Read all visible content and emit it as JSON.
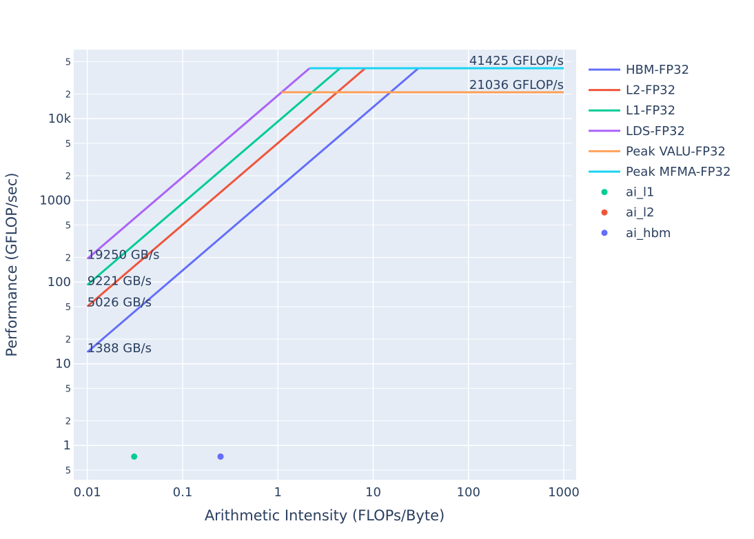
{
  "chart_data": {
    "type": "line",
    "xlabel": "Arithmetic Intensity (FLOPs/Byte)",
    "ylabel": "Performance (GFLOP/sec)",
    "x_scale": "log",
    "y_scale": "log",
    "xlim": [
      0.0072,
      1350
    ],
    "ylim": [
      0.38,
      70000
    ],
    "x_ticks": [
      {
        "value": 0.01,
        "label": "0.01"
      },
      {
        "value": 0.1,
        "label": "0.1"
      },
      {
        "value": 1,
        "label": "1"
      },
      {
        "value": 10,
        "label": "10"
      },
      {
        "value": 100,
        "label": "100"
      },
      {
        "value": 1000,
        "label": "1000"
      }
    ],
    "y_major_ticks": [
      {
        "value": 1,
        "label": "1"
      },
      {
        "value": 10,
        "label": "10"
      },
      {
        "value": 100,
        "label": "100"
      },
      {
        "value": 1000,
        "label": "1000"
      },
      {
        "value": 10000,
        "label": "10k"
      }
    ],
    "y_minor_ticks": [
      {
        "value": 0.5,
        "label": "5"
      },
      {
        "value": 2,
        "label": "2"
      },
      {
        "value": 5,
        "label": "5"
      },
      {
        "value": 20,
        "label": "2"
      },
      {
        "value": 50,
        "label": "5"
      },
      {
        "value": 200,
        "label": "2"
      },
      {
        "value": 500,
        "label": "5"
      },
      {
        "value": 2000,
        "label": "2"
      },
      {
        "value": 5000,
        "label": "5"
      },
      {
        "value": 20000,
        "label": "2"
      },
      {
        "value": 50000,
        "label": "5"
      }
    ],
    "grid": true,
    "legend_position": "right",
    "series": [
      {
        "name": "HBM-FP32",
        "kind": "line",
        "color": "#636efa",
        "x": [
          0.01,
          29.85,
          1000
        ],
        "y": [
          13.88,
          41425,
          41425
        ]
      },
      {
        "name": "L2-FP32",
        "kind": "line",
        "color": "#ef553b",
        "x": [
          0.01,
          8.24,
          1000
        ],
        "y": [
          50.26,
          41425,
          41425
        ]
      },
      {
        "name": "L1-FP32",
        "kind": "line",
        "color": "#00cc96",
        "x": [
          0.01,
          4.49,
          1000
        ],
        "y": [
          92.21,
          41425,
          41425
        ]
      },
      {
        "name": "LDS-FP32",
        "kind": "line",
        "color": "#ab63fa",
        "x": [
          0.01,
          2.15
        ],
        "y": [
          192.5,
          41425
        ]
      },
      {
        "name": "Peak VALU-FP32",
        "kind": "line",
        "color": "#ffa15a",
        "x": [
          1.09,
          1000
        ],
        "y": [
          21036,
          21036
        ]
      },
      {
        "name": "Peak MFMA-FP32",
        "kind": "line",
        "color": "#19d3f3",
        "x": [
          2.15,
          1000
        ],
        "y": [
          41425,
          41425
        ]
      },
      {
        "name": "ai_l1",
        "kind": "scatter",
        "color": "#00cc96",
        "x": [
          0.031
        ],
        "y": [
          0.73
        ]
      },
      {
        "name": "ai_l2",
        "kind": "scatter",
        "color": "#ef553b",
        "x": [
          0.25
        ],
        "y": [
          0.73
        ]
      },
      {
        "name": "ai_hbm",
        "kind": "scatter",
        "color": "#636efa",
        "x": [
          0.25
        ],
        "y": [
          0.73
        ]
      }
    ],
    "annotations": [
      {
        "text": "41425 GFLOP/s",
        "x": 1000,
        "y": 41425,
        "anchor": "end"
      },
      {
        "text": "21036 GFLOP/s",
        "x": 1000,
        "y": 21036,
        "anchor": "end"
      },
      {
        "text": "19250 GB/s",
        "x": 0.01,
        "y": 192.5,
        "anchor": "start"
      },
      {
        "text": "9221 GB/s",
        "x": 0.01,
        "y": 92.21,
        "anchor": "start"
      },
      {
        "text": "5026 GB/s",
        "x": 0.01,
        "y": 50.26,
        "anchor": "start"
      },
      {
        "text": "1388 GB/s",
        "x": 0.01,
        "y": 13.88,
        "anchor": "start"
      }
    ]
  }
}
